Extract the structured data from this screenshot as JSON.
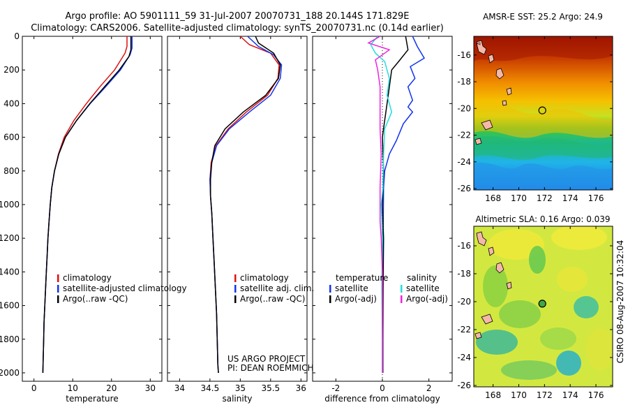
{
  "header": {
    "title_line1": "Argo profile: AO 5901111_59 31-Jul-2007 20070731_188 20.144S 171.829E",
    "title_line2": "Climatology: CARS2006. Satellite-adjusted climatology: synTS_20070731.nc (0.14d earlier)"
  },
  "side_label": "CSIRO 08-Aug-2007 10:32:04",
  "colors": {
    "climatology": "#dd1111",
    "satellite": "#1133ee",
    "argo": "#000000",
    "salinity_sat": "#22dddd",
    "salinity_argo": "#ee22dd"
  },
  "chart_data": [
    {
      "type": "line",
      "id": "temperature",
      "xlabel": "temperature",
      "ylabel": "",
      "xlim": [
        -3,
        33
      ],
      "ylim": [
        2050,
        0
      ],
      "xticks": [
        0,
        10,
        20,
        30
      ],
      "yticks": [
        0,
        200,
        400,
        600,
        800,
        1000,
        1200,
        1400,
        1600,
        1800,
        2000
      ],
      "legend": [
        "climatology",
        "satellite-adjusted climatology",
        "Argo(..raw -QC)"
      ],
      "series": [
        {
          "name": "climatology",
          "color": "#dd1111",
          "points": [
            [
              24.0,
              0
            ],
            [
              24.0,
              60
            ],
            [
              23.5,
              100
            ],
            [
              20.8,
              200
            ],
            [
              17.0,
              300
            ],
            [
              13.5,
              400
            ],
            [
              10.3,
              500
            ],
            [
              7.8,
              600
            ],
            [
              6.3,
              700
            ],
            [
              5.3,
              800
            ],
            [
              4.6,
              900
            ],
            [
              4.2,
              1000
            ],
            [
              3.9,
              1100
            ],
            [
              3.6,
              1200
            ],
            [
              3.4,
              1300
            ],
            [
              3.2,
              1400
            ],
            [
              3.0,
              1500
            ],
            [
              2.8,
              1600
            ],
            [
              2.6,
              1700
            ],
            [
              2.5,
              1800
            ],
            [
              2.4,
              1900
            ],
            [
              2.3,
              2000
            ]
          ]
        },
        {
          "name": "satellite-adjusted climatology",
          "color": "#1133ee",
          "points": [
            [
              25.3,
              0
            ],
            [
              25.3,
              70
            ],
            [
              24.8,
              110
            ],
            [
              22.3,
              200
            ],
            [
              18.5,
              300
            ],
            [
              14.5,
              400
            ],
            [
              11.0,
              500
            ],
            [
              8.1,
              600
            ],
            [
              6.4,
              700
            ],
            [
              5.3,
              800
            ],
            [
              4.6,
              900
            ],
            [
              4.2,
              1000
            ],
            [
              3.9,
              1100
            ],
            [
              3.6,
              1200
            ],
            [
              3.4,
              1300
            ],
            [
              3.2,
              1400
            ],
            [
              3.0,
              1500
            ],
            [
              2.8,
              1600
            ],
            [
              2.6,
              1700
            ],
            [
              2.5,
              1800
            ],
            [
              2.4,
              1900
            ],
            [
              2.3,
              2000
            ]
          ]
        },
        {
          "name": "Argo(..raw -QC)",
          "color": "#000000",
          "points": [
            [
              25.0,
              0
            ],
            [
              25.0,
              80
            ],
            [
              24.5,
              120
            ],
            [
              22.0,
              200
            ],
            [
              18.2,
              300
            ],
            [
              14.4,
              400
            ],
            [
              11.0,
              500
            ],
            [
              8.1,
              600
            ],
            [
              6.4,
              700
            ],
            [
              5.3,
              800
            ],
            [
              4.6,
              900
            ],
            [
              4.2,
              1000
            ],
            [
              3.9,
              1100
            ],
            [
              3.6,
              1200
            ],
            [
              3.4,
              1300
            ],
            [
              3.2,
              1400
            ],
            [
              3.0,
              1500
            ],
            [
              2.8,
              1600
            ],
            [
              2.6,
              1700
            ],
            [
              2.5,
              1800
            ],
            [
              2.4,
              1900
            ],
            [
              2.3,
              2000
            ]
          ]
        }
      ]
    },
    {
      "type": "line",
      "id": "salinity",
      "xlabel": "salinity",
      "ylabel": "",
      "xlim": [
        33.8,
        36.1
      ],
      "ylim": [
        2050,
        0
      ],
      "xticks": [
        34,
        34.5,
        35,
        35.5,
        36
      ],
      "legend": [
        "climatology",
        "satellite adj. clim.",
        "Argo(..raw -QC)"
      ],
      "annotation": [
        "US ARGO PROJECT",
        "PI: DEAN ROEMMICH"
      ],
      "series": [
        {
          "name": "climatology",
          "color": "#dd1111",
          "points": [
            [
              35.0,
              0
            ],
            [
              35.15,
              50
            ],
            [
              35.5,
              100
            ],
            [
              35.64,
              170
            ],
            [
              35.62,
              250
            ],
            [
              35.45,
              350
            ],
            [
              35.1,
              450
            ],
            [
              34.8,
              550
            ],
            [
              34.6,
              650
            ],
            [
              34.52,
              750
            ],
            [
              34.5,
              850
            ],
            [
              34.51,
              950
            ],
            [
              34.53,
              1050
            ],
            [
              34.55,
              1200
            ],
            [
              34.57,
              1350
            ],
            [
              34.59,
              1500
            ],
            [
              34.61,
              1650
            ],
            [
              34.62,
              1800
            ],
            [
              34.63,
              1950
            ],
            [
              34.64,
              2000
            ]
          ]
        },
        {
          "name": "satellite adj. clim.",
          "color": "#1133ee",
          "points": [
            [
              35.12,
              0
            ],
            [
              35.3,
              60
            ],
            [
              35.55,
              110
            ],
            [
              35.68,
              170
            ],
            [
              35.66,
              250
            ],
            [
              35.5,
              350
            ],
            [
              35.15,
              450
            ],
            [
              34.82,
              550
            ],
            [
              34.61,
              650
            ],
            [
              34.53,
              750
            ],
            [
              34.5,
              850
            ],
            [
              34.51,
              950
            ],
            [
              34.53,
              1050
            ],
            [
              34.55,
              1200
            ],
            [
              34.57,
              1350
            ],
            [
              34.59,
              1500
            ],
            [
              34.61,
              1650
            ],
            [
              34.62,
              1800
            ],
            [
              34.63,
              1950
            ],
            [
              34.64,
              2000
            ]
          ]
        },
        {
          "name": "Argo(..raw -QC)",
          "color": "#000000",
          "points": [
            [
              35.25,
              0
            ],
            [
              35.3,
              40
            ],
            [
              35.55,
              100
            ],
            [
              35.66,
              170
            ],
            [
              35.63,
              250
            ],
            [
              35.42,
              350
            ],
            [
              35.05,
              450
            ],
            [
              34.75,
              550
            ],
            [
              34.58,
              650
            ],
            [
              34.53,
              750
            ],
            [
              34.51,
              850
            ],
            [
              34.51,
              950
            ],
            [
              34.53,
              1050
            ],
            [
              34.55,
              1200
            ],
            [
              34.57,
              1350
            ],
            [
              34.59,
              1500
            ],
            [
              34.61,
              1650
            ],
            [
              34.62,
              1800
            ],
            [
              34.63,
              1950
            ],
            [
              34.64,
              2000
            ]
          ]
        }
      ]
    },
    {
      "type": "line",
      "id": "difference",
      "xlabel": "difference from climatology",
      "ylabel": "",
      "xlim": [
        -3,
        3
      ],
      "ylim": [
        2050,
        0
      ],
      "xticks": [
        -2,
        0,
        2
      ],
      "legend_left_title": "temperature",
      "legend_left": [
        "satellite",
        "Argo(-adj)"
      ],
      "legend_right_title": "salinity",
      "legend_right": [
        "satellite",
        "Argo(-adj)"
      ],
      "series": [
        {
          "name": "temperature satellite",
          "color": "#1133ee",
          "points": [
            [
              1.3,
              0
            ],
            [
              1.5,
              60
            ],
            [
              1.8,
              130
            ],
            [
              1.2,
              180
            ],
            [
              1.4,
              250
            ],
            [
              1.1,
              300
            ],
            [
              1.3,
              380
            ],
            [
              1.1,
              420
            ],
            [
              1.3,
              450
            ],
            [
              0.9,
              520
            ],
            [
              0.6,
              620
            ],
            [
              0.3,
              700
            ],
            [
              0.1,
              800
            ],
            [
              0.05,
              900
            ],
            [
              0.03,
              1200
            ],
            [
              0.02,
              1600
            ],
            [
              0.02,
              2000
            ]
          ]
        },
        {
          "name": "temperature Argo(-adj)",
          "color": "#000000",
          "points": [
            [
              1.0,
              0
            ],
            [
              1.1,
              80
            ],
            [
              0.7,
              150
            ],
            [
              0.4,
              200
            ],
            [
              0.3,
              300
            ],
            [
              0.2,
              400
            ],
            [
              0.1,
              500
            ],
            [
              0.0,
              600
            ],
            [
              0.05,
              800
            ],
            [
              0.0,
              1000
            ],
            [
              0.05,
              1200
            ],
            [
              0.03,
              1500
            ],
            [
              0.02,
              1800
            ],
            [
              0.02,
              2000
            ]
          ]
        },
        {
          "name": "salinity satellite",
          "color": "#22dddd",
          "points": [
            [
              -0.2,
              0
            ],
            [
              -0.5,
              50
            ],
            [
              -0.3,
              100
            ],
            [
              0.1,
              150
            ],
            [
              0.3,
              250
            ],
            [
              0.2,
              350
            ],
            [
              0.4,
              450
            ],
            [
              0.1,
              550
            ],
            [
              0.05,
              700
            ],
            [
              0.02,
              900
            ],
            [
              -0.05,
              1000
            ],
            [
              0.0,
              1200
            ],
            [
              -0.02,
              1500
            ],
            [
              0.0,
              1800
            ],
            [
              0.0,
              2000
            ]
          ]
        },
        {
          "name": "salinity Argo(-adj)",
          "color": "#ee22dd",
          "points": [
            [
              -0.1,
              0
            ],
            [
              -0.6,
              40
            ],
            [
              0.3,
              80
            ],
            [
              -0.3,
              140
            ],
            [
              -0.2,
              200
            ],
            [
              -0.1,
              300
            ],
            [
              -0.1,
              400
            ],
            [
              -0.1,
              550
            ],
            [
              -0.05,
              700
            ],
            [
              -0.1,
              900
            ],
            [
              -0.1,
              1100
            ],
            [
              -0.05,
              1200
            ],
            [
              0.0,
              1400
            ],
            [
              0.0,
              1700
            ],
            [
              0.0,
              2000
            ]
          ]
        }
      ]
    },
    {
      "type": "heatmap",
      "id": "sst_map",
      "title": "AMSR-E SST: 25.2 Argo: 24.9",
      "xticks": [
        168,
        170,
        172,
        174,
        176
      ],
      "yticks": [
        -16,
        -18,
        -20,
        -22,
        -24,
        -26
      ],
      "xlim": [
        166.5,
        177.3
      ],
      "ylim": [
        -26.1,
        -14.6
      ],
      "marker": [
        171.829,
        -20.144
      ]
    },
    {
      "type": "heatmap",
      "id": "sla_map",
      "title": "Altimetric SLA: 0.16 Argo: 0.039",
      "xticks": [
        168,
        170,
        172,
        174,
        176
      ],
      "yticks": [
        -16,
        -18,
        -20,
        -22,
        -24,
        -26
      ],
      "xlim": [
        166.5,
        177.3
      ],
      "ylim": [
        -26.1,
        -14.6
      ],
      "marker": [
        171.829,
        -20.144
      ]
    }
  ]
}
